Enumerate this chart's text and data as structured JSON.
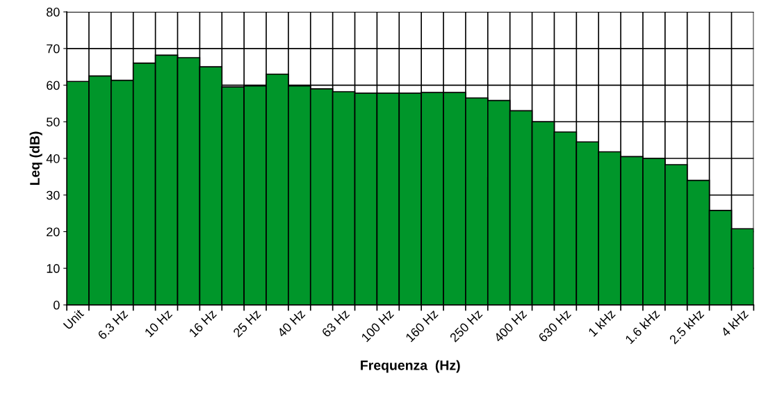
{
  "chart_data": {
    "type": "bar",
    "xlabel": "Frequenza  (Hz)",
    "ylabel": "Leq (dB)",
    "categories": [
      "Unit",
      null,
      "6.3 Hz",
      null,
      "10 Hz",
      null,
      "16 Hz",
      null,
      "25 Hz",
      null,
      "40 Hz",
      null,
      "63 Hz",
      null,
      "100 Hz",
      null,
      "160 Hz",
      null,
      "250 Hz",
      null,
      "400 Hz",
      null,
      "630 Hz",
      null,
      "1 kHz",
      null,
      "1.6 kHz",
      null,
      "2.5 kHz",
      null,
      "4 kHz"
    ],
    "values": [
      61,
      62.5,
      61.3,
      66,
      68.2,
      67.5,
      65,
      59.5,
      59.8,
      63,
      59.8,
      59,
      58.2,
      57.8,
      57.8,
      57.8,
      58,
      58,
      56.5,
      55.8,
      53,
      50,
      47.2,
      44.5,
      41.8,
      40.5,
      40,
      38.3,
      34,
      25.8,
      20.8
    ],
    "color": "#00962a",
    "ylim": [
      0,
      80
    ],
    "yticks": [
      0,
      10,
      20,
      30,
      40,
      50,
      60,
      70,
      80
    ],
    "grid": true
  }
}
